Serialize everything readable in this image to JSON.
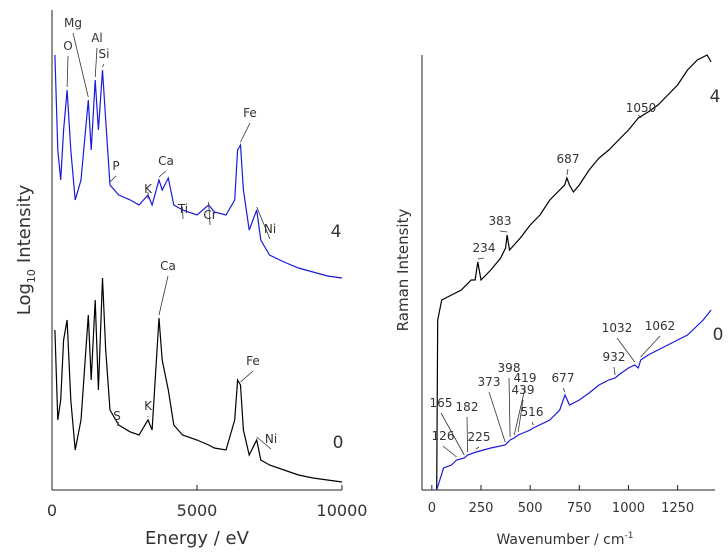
{
  "chart_data": [
    {
      "type": "line",
      "xlabel": "Energy  /  eV",
      "ylabel": [
        "Log",
        "10",
        "Intensity"
      ],
      "xlim": [
        0,
        10000
      ],
      "ylim": [
        0,
        480
      ],
      "xticks": [
        0,
        5000,
        10000
      ],
      "series": [
        {
          "name": "4",
          "color": "#1a1adb",
          "x": [
            100,
            200,
            300,
            400,
            520,
            650,
            800,
            1000,
            1250,
            1350,
            1490,
            1600,
            1740,
            1850,
            2000,
            2300,
            2700,
            3000,
            3310,
            3450,
            3690,
            3800,
            4010,
            4200,
            4500,
            5000,
            5400,
            5600,
            6000,
            6300,
            6400,
            6500,
            6600,
            6800,
            7060,
            7200,
            7500,
            8000,
            8500,
            9000,
            9500,
            10000
          ],
          "values": [
            435,
            340,
            310,
            360,
            400,
            340,
            290,
            310,
            390,
            340,
            410,
            360,
            420,
            370,
            305,
            295,
            290,
            285,
            295,
            285,
            310,
            300,
            312,
            285,
            280,
            275,
            285,
            278,
            275,
            290,
            340,
            345,
            300,
            260,
            280,
            250,
            235,
            228,
            222,
            218,
            214,
            212
          ],
          "annotations": [
            {
              "label": "O",
              "x": 520
            },
            {
              "label": "Mg",
              "x": 1250
            },
            {
              "label": "Al",
              "x": 1490
            },
            {
              "label": "Si",
              "x": 1740
            },
            {
              "label": "P",
              "x": 2000
            },
            {
              "label": "K",
              "x": 3310
            },
            {
              "label": "Ca",
              "x": 3690
            },
            {
              "label": "Ti",
              "x": 4500
            },
            {
              "label": "Cr",
              "x": 5400
            },
            {
              "label": "Fe",
              "x": 6500
            },
            {
              "label": "Ni",
              "x": 7060
            }
          ]
        },
        {
          "name": "0",
          "color": "#000000",
          "x": [
            100,
            200,
            300,
            400,
            520,
            650,
            800,
            1000,
            1250,
            1350,
            1490,
            1600,
            1740,
            1850,
            2000,
            2300,
            2700,
            3000,
            3310,
            3450,
            3690,
            3800,
            4010,
            4200,
            4500,
            5000,
            5400,
            5600,
            6000,
            6300,
            6400,
            6500,
            6600,
            6800,
            7060,
            7200,
            7500,
            8000,
            8500,
            9000,
            9500,
            10000
          ],
          "values": [
            160,
            70,
            90,
            150,
            170,
            90,
            40,
            70,
            175,
            110,
            190,
            100,
            212,
            140,
            80,
            65,
            58,
            55,
            70,
            60,
            172,
            130,
            100,
            65,
            55,
            50,
            45,
            42,
            40,
            70,
            110,
            105,
            60,
            35,
            50,
            30,
            25,
            20,
            15,
            12,
            10,
            8
          ],
          "annotations": [
            {
              "label": "Ca",
              "x": 3690
            },
            {
              "label": "Fe",
              "x": 6500
            },
            {
              "label": "S",
              "x": 2300
            },
            {
              "label": "K",
              "x": 3310
            },
            {
              "label": "Ni",
              "x": 7060
            }
          ]
        }
      ]
    },
    {
      "type": "line",
      "xlabel": [
        "Wavenumber / cm",
        "-1"
      ],
      "ylabel": "Raman  Intensity",
      "xlim": [
        -50,
        1440
      ],
      "ylim": [
        0,
        480
      ],
      "xticks": [
        0,
        250,
        500,
        750,
        1000,
        1250
      ],
      "series": [
        {
          "name": "4",
          "color": "#000000",
          "x": [
            25,
            30,
            50,
            100,
            150,
            200,
            220,
            234,
            250,
            300,
            350,
            375,
            383,
            395,
            450,
            500,
            550,
            600,
            650,
            675,
            687,
            700,
            720,
            750,
            800,
            850,
            900,
            950,
            1000,
            1050,
            1100,
            1150,
            1200,
            1250,
            1300,
            1350,
            1400,
            1420
          ],
          "values": [
            0,
            170,
            190,
            195,
            200,
            210,
            210,
            228,
            210,
            220,
            232,
            242,
            255,
            240,
            252,
            265,
            275,
            290,
            300,
            305,
            312,
            305,
            298,
            305,
            320,
            332,
            340,
            350,
            360,
            372,
            378,
            385,
            395,
            405,
            420,
            430,
            435,
            428
          ],
          "peaks": [
            234,
            383,
            687,
            1050
          ]
        },
        {
          "name": "0",
          "color": "#1a1adb",
          "x": [
            25,
            60,
            100,
            126,
            165,
            182,
            225,
            300,
            373,
            398,
            419,
            439,
            500,
            516,
            600,
            650,
            677,
            700,
            750,
            800,
            850,
            900,
            932,
            950,
            1000,
            1032,
            1050,
            1062,
            1100,
            1200,
            1300,
            1380,
            1420
          ],
          "values": [
            0,
            22,
            25,
            30,
            32,
            35,
            38,
            42,
            45,
            50,
            52,
            55,
            60,
            62,
            70,
            80,
            95,
            85,
            90,
            97,
            105,
            110,
            112,
            115,
            122,
            125,
            122,
            130,
            135,
            145,
            155,
            170,
            180
          ],
          "peaks": [
            126,
            165,
            182,
            225,
            373,
            398,
            419,
            439,
            516,
            677,
            932,
            1032,
            1062
          ]
        }
      ]
    }
  ]
}
